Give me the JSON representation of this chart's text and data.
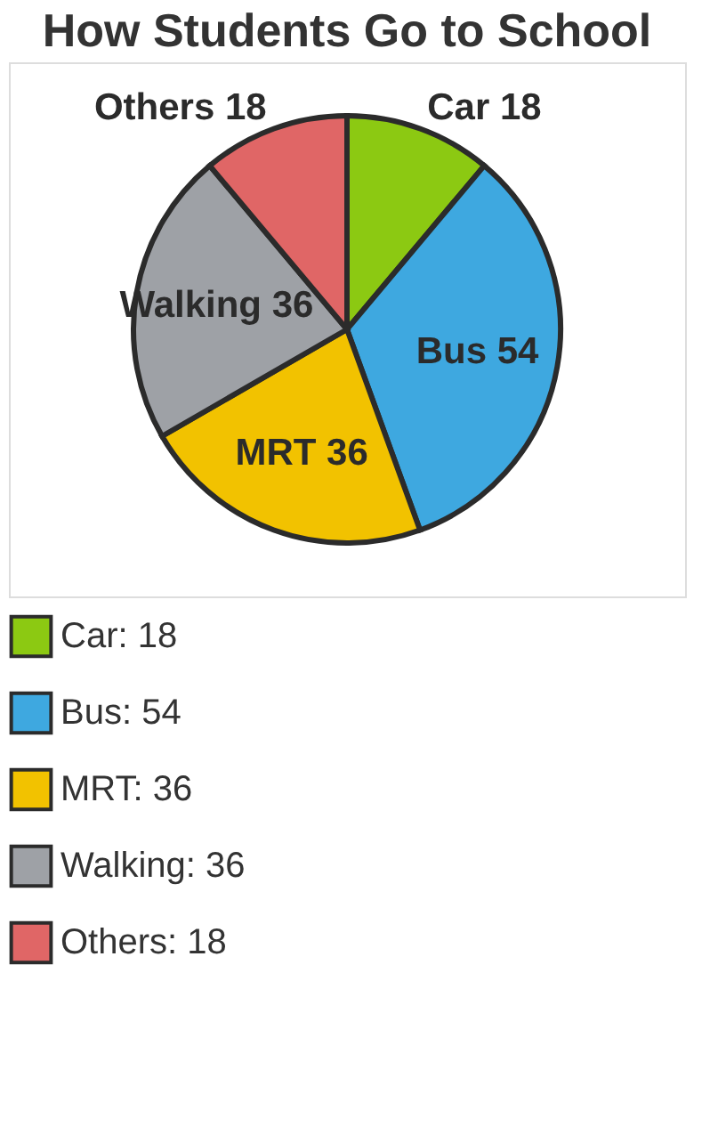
{
  "chart_data": {
    "type": "pie",
    "title": "How Students Go to School",
    "categories": [
      "Car: 18",
      "Bus: 54",
      "MRT: 36",
      "Walking: 36",
      "Others: 18"
    ],
    "values": [
      18,
      54,
      36,
      36,
      18
    ],
    "value_labels": [
      "Car 18",
      "Bus 54",
      "MRT 36",
      "Walking 36",
      "Others 18"
    ],
    "colors": [
      "#8cc912",
      "#3ea8e0",
      "#f2c200",
      "#9ea1a6",
      "#e06666"
    ],
    "legend": "bottom"
  }
}
